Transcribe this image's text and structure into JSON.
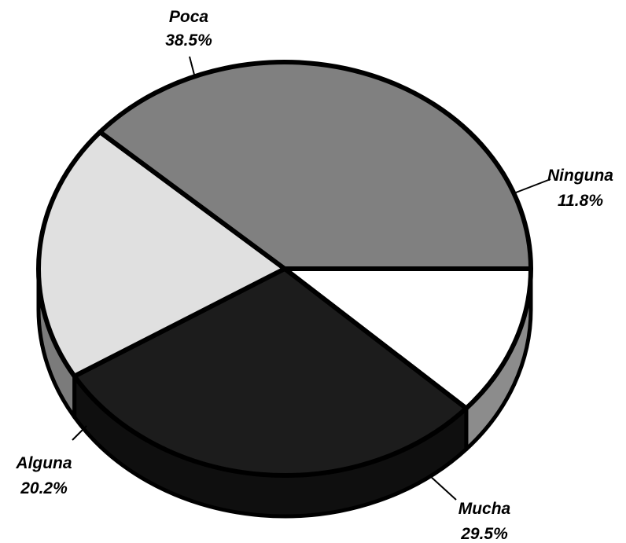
{
  "chart_data": {
    "type": "pie",
    "style": "3d",
    "categories": [
      "Ninguna",
      "Mucha",
      "Alguna",
      "Poca"
    ],
    "values": [
      11.8,
      29.5,
      20.2,
      38.5
    ],
    "value_labels": [
      "11.8%",
      "29.5%",
      "20.2%",
      "38.5%"
    ],
    "colors": [
      "#ffffff",
      "#1c1c1c",
      "#e0e0e0",
      "#808080"
    ],
    "legend": "none",
    "labels_position": "outside-with-leader-lines"
  }
}
